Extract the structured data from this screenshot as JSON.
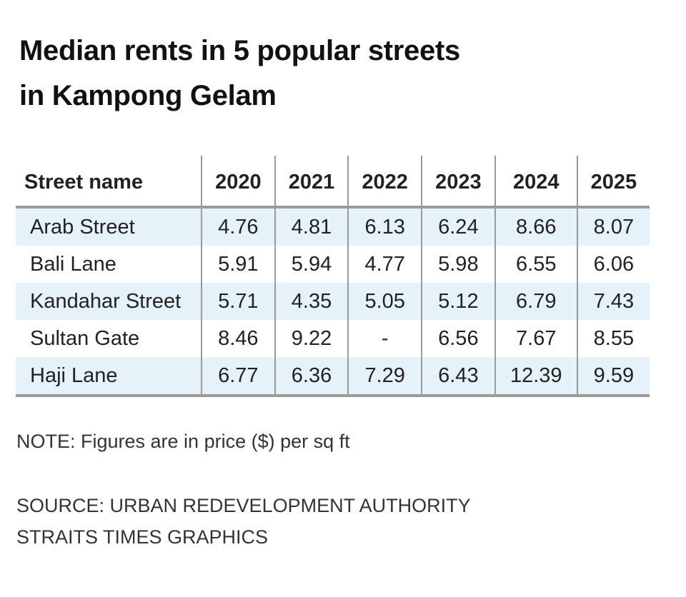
{
  "chart_data": {
    "type": "table",
    "title": "Median rents in 5 popular streets in Kampong Gelam",
    "title_lines": [
      "Median rents in 5 popular streets",
      "in Kampong Gelam"
    ],
    "columns": [
      "Street name",
      "2020",
      "2021",
      "2022",
      "2023",
      "2024",
      "2025"
    ],
    "rows": [
      {
        "street": "Arab Street",
        "values": [
          "4.76",
          "4.81",
          "6.13",
          "6.24",
          "8.66",
          "8.07"
        ]
      },
      {
        "street": "Bali Lane",
        "values": [
          "5.91",
          "5.94",
          "4.77",
          "5.98",
          "6.55",
          "6.06"
        ]
      },
      {
        "street": "Kandahar Street",
        "values": [
          "5.71",
          "4.35",
          "5.05",
          "5.12",
          "6.79",
          "7.43"
        ]
      },
      {
        "street": "Sultan Gate",
        "values": [
          "8.46",
          "9.22",
          "-",
          "6.56",
          "7.67",
          "8.55"
        ]
      },
      {
        "street": "Haji Lane",
        "values": [
          "6.77",
          "6.36",
          "7.29",
          "6.43",
          "12.39",
          "9.59"
        ]
      }
    ],
    "note": "NOTE: Figures are in price ($) per sq ft",
    "source_lines": [
      "SOURCE: URBAN REDEVELOPMENT AUTHORITY",
      "STRAITS TIMES GRAPHICS"
    ],
    "colors": {
      "shade": "#e5f2fa",
      "rule": "#999999"
    }
  }
}
